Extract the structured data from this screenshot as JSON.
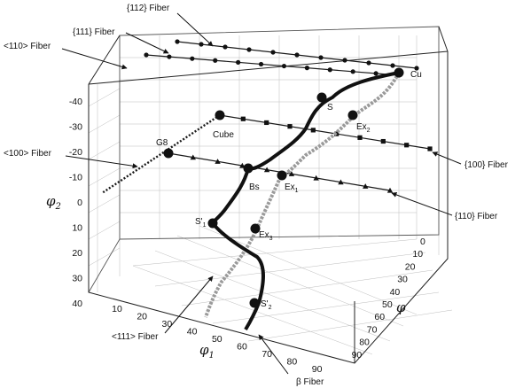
{
  "fiber_labels": {
    "f112": "{112} Fiber",
    "f111": "{111} Fiber",
    "f110_axis": "<110> Fiber",
    "f100_axis": "<100> Fiber",
    "f100_plane": "{100} Fiber",
    "f110_plane": "{110} Fiber",
    "f111_axis": "<111> Fiber",
    "beta": "β Fiber"
  },
  "points": {
    "cu": "Cu",
    "s": "S",
    "ex2_base": "Ex",
    "ex2_sub": "2",
    "cube": "Cube",
    "g8": "G8",
    "bs": "Bs",
    "ex1_base": "Ex",
    "ex1_sub": "1",
    "s1_base": "S'",
    "s1_sub": "1",
    "ex3_base": "Ex",
    "ex3_sub": "3",
    "s2_base": "S'",
    "s2_sub": "2"
  },
  "axes": {
    "phi2_base": "φ",
    "phi2_sub": "2",
    "phi1_base": "φ",
    "phi1_sub": "1",
    "phi": "φ",
    "phi2_ticks": [
      "-40",
      "-30",
      "-20",
      "-10",
      "0",
      "10",
      "20",
      "30",
      "40"
    ],
    "phi1_ticks": [
      "10",
      "20",
      "30",
      "40",
      "50",
      "60",
      "70",
      "80",
      "90"
    ],
    "phi_ticks": [
      "0",
      "10",
      "20",
      "30",
      "40",
      "50",
      "60",
      "70",
      "80",
      "90"
    ]
  },
  "colors": {
    "beta_path": "#111111",
    "alt_path": "#9a9a9a",
    "fiber_lines": "#1a1a1a"
  }
}
